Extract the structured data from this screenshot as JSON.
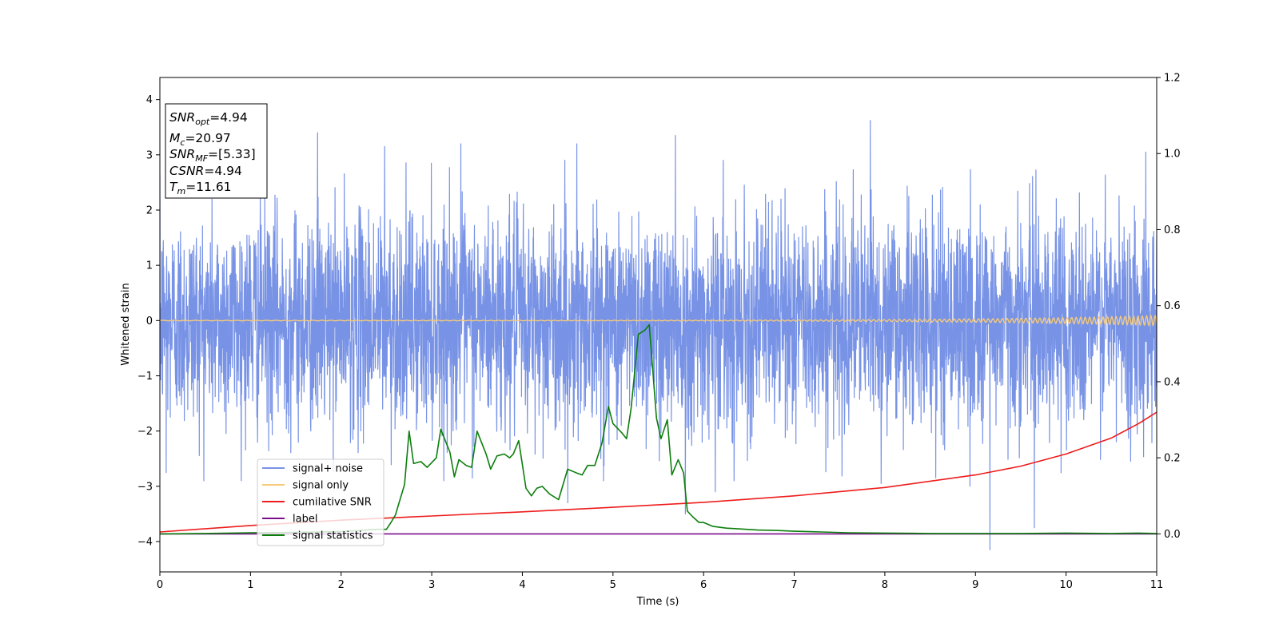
{
  "chart_data": {
    "type": "line",
    "title": "",
    "xlabel": "Time (s)",
    "ylabel": "Whitened strain",
    "xlim": [
      0,
      11
    ],
    "ylim": [
      -4.55,
      4.4
    ],
    "ylim_right": [
      -0.1,
      1.2
    ],
    "x_ticks": [
      "0",
      "1",
      "2",
      "3",
      "4",
      "5",
      "6",
      "7",
      "8",
      "9",
      "10",
      "11"
    ],
    "y_ticks": [
      "−4",
      "−3",
      "−2",
      "−1",
      "0",
      "1",
      "2",
      "3",
      "4"
    ],
    "y_right_ticks": [
      "0.0",
      "0.2",
      "0.4",
      "0.6",
      "0.8",
      "1.0",
      "1.2"
    ],
    "grid": false,
    "legend_position": "lower-left",
    "annotation": {
      "lines": [
        {
          "sym": "SNR",
          "sub": "opt",
          "value": "=4.94"
        },
        {
          "sym": "M",
          "sub": "c",
          "value": "=20.97"
        },
        {
          "sym": "SNR",
          "sub": "MF",
          "value": "=[5.33]"
        },
        {
          "sym": "CSNR",
          "sub": "",
          "value": "=4.94"
        },
        {
          "sym": "T",
          "sub": "m",
          "value": "=11.61"
        }
      ]
    },
    "series": [
      {
        "name": "signal+ noise",
        "axis": "left",
        "color": "#7893e6",
        "kind": "noise",
        "description_values": {
          "mean": 0,
          "typical_amplitude": 1.0,
          "peak_max": 3.62,
          "peak_min": -4.15
        },
        "peaks": [
          {
            "x": 1.74,
            "y": 3.4
          },
          {
            "x": 2.48,
            "y": 3.15
          },
          {
            "x": 3.32,
            "y": 3.2
          },
          {
            "x": 4.6,
            "y": 3.2
          },
          {
            "x": 5.69,
            "y": 3.35
          },
          {
            "x": 7.84,
            "y": 3.62
          },
          {
            "x": 10.88,
            "y": 3.05
          },
          {
            "x": 9.16,
            "y": -4.15
          },
          {
            "x": 9.65,
            "y": -3.75
          },
          {
            "x": 5.8,
            "y": -3.5
          },
          {
            "x": 4.5,
            "y": -3.3
          },
          {
            "x": 6.13,
            "y": -3.1
          },
          {
            "x": 0.07,
            "y": -2.75
          },
          {
            "x": 7.96,
            "y": -2.95
          },
          {
            "x": 8.94,
            "y": -3.0
          }
        ]
      },
      {
        "name": "signal only",
        "axis": "left",
        "color": "#f5c97a",
        "kind": "chirp",
        "amplitude_start": 0.005,
        "amplitude_end": 0.09
      },
      {
        "name": "cumilative SNR",
        "axis": "right",
        "color": "#ee1c1c",
        "x": [
          0,
          1,
          2,
          3,
          4,
          5,
          6,
          7,
          8,
          9,
          9.5,
          10,
          10.5,
          10.8,
          11
        ],
        "y": [
          0.005,
          0.022,
          0.036,
          0.047,
          0.058,
          0.07,
          0.083,
          0.1,
          0.122,
          0.155,
          0.178,
          0.21,
          0.252,
          0.29,
          0.32
        ]
      },
      {
        "name": "label",
        "axis": "right",
        "color": "#7a0f8a",
        "x": [
          0,
          11
        ],
        "y": [
          0,
          0
        ]
      },
      {
        "name": "signal statistics",
        "axis": "right",
        "color": "#0c7e0c",
        "x": [
          0,
          0.5,
          1,
          1.5,
          2,
          2.4,
          2.5,
          2.55,
          2.6,
          2.7,
          2.75,
          2.8,
          2.88,
          2.95,
          3.05,
          3.1,
          3.2,
          3.25,
          3.3,
          3.38,
          3.44,
          3.5,
          3.6,
          3.65,
          3.72,
          3.8,
          3.86,
          3.9,
          3.96,
          4.04,
          4.1,
          4.16,
          4.22,
          4.3,
          4.4,
          4.5,
          4.6,
          4.66,
          4.72,
          4.8,
          4.88,
          4.95,
          5.0,
          5.1,
          5.15,
          5.2,
          5.28,
          5.35,
          5.4,
          5.48,
          5.53,
          5.6,
          5.65,
          5.72,
          5.78,
          5.82,
          5.88,
          5.95,
          6.0,
          6.1,
          6.25,
          6.4,
          6.6,
          6.8,
          7.0,
          7.3,
          7.6,
          8.0,
          8.5,
          9.0,
          9.5,
          10.0,
          10.5,
          10.8,
          11
        ],
        "y": [
          0.0,
          0.001,
          0.003,
          0.004,
          0.006,
          0.012,
          0.012,
          0.03,
          0.05,
          0.13,
          0.27,
          0.185,
          0.19,
          0.175,
          0.2,
          0.275,
          0.215,
          0.15,
          0.195,
          0.18,
          0.175,
          0.27,
          0.21,
          0.17,
          0.205,
          0.21,
          0.2,
          0.21,
          0.245,
          0.12,
          0.1,
          0.12,
          0.125,
          0.105,
          0.09,
          0.17,
          0.16,
          0.155,
          0.18,
          0.18,
          0.24,
          0.335,
          0.29,
          0.265,
          0.25,
          0.33,
          0.525,
          0.535,
          0.55,
          0.305,
          0.25,
          0.3,
          0.155,
          0.195,
          0.16,
          0.06,
          0.045,
          0.03,
          0.03,
          0.02,
          0.015,
          0.013,
          0.01,
          0.009,
          0.007,
          0.005,
          0.003,
          0.002,
          0.001,
          0.001,
          0.001,
          0.002,
          0.001,
          0.002,
          0.001
        ]
      }
    ]
  }
}
